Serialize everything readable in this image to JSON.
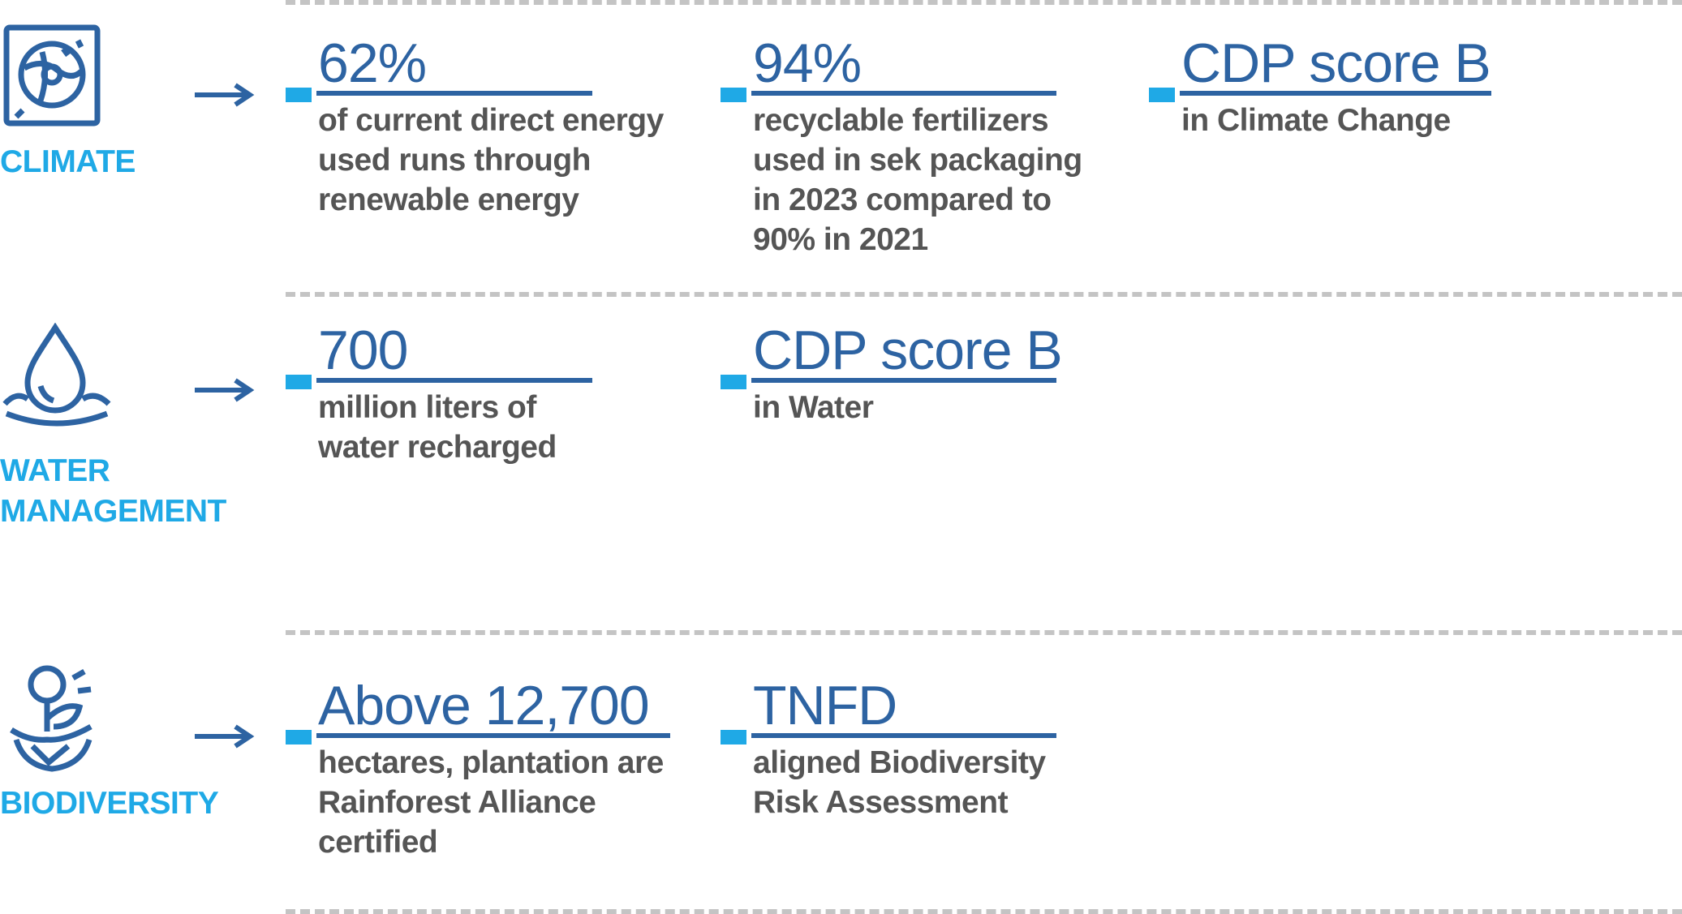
{
  "colors": {
    "accent": "#1fa9e6",
    "primary": "#2d63a2",
    "text": "#555555",
    "divider": "#c4c4c4"
  },
  "rows": [
    {
      "category": "CLIMATE",
      "icon": "globe-leaf-icon",
      "stats": [
        {
          "value": "62%",
          "desc": "of current direct energy used runs through renewable energy"
        },
        {
          "value": "94%",
          "desc": "recyclable fertilizers used in sek packaging in 2023 compared to 90% in 2021"
        },
        {
          "value": "CDP score B",
          "desc": "in Climate Change"
        }
      ]
    },
    {
      "category": "WATER MANAGEMENT",
      "icon": "water-drop-icon",
      "stats": [
        {
          "value": "700",
          "desc": "million liters of water recharged"
        },
        {
          "value": "CDP score B",
          "desc": "in Water"
        }
      ]
    },
    {
      "category": "BIODIVERSITY",
      "icon": "plant-hands-icon",
      "stats": [
        {
          "value": "Above 12,700",
          "desc": "hectares, plantation are Rainforest Alliance certified"
        },
        {
          "value": "TNFD",
          "desc": "aligned Biodiversity Risk Assessment"
        }
      ]
    }
  ]
}
